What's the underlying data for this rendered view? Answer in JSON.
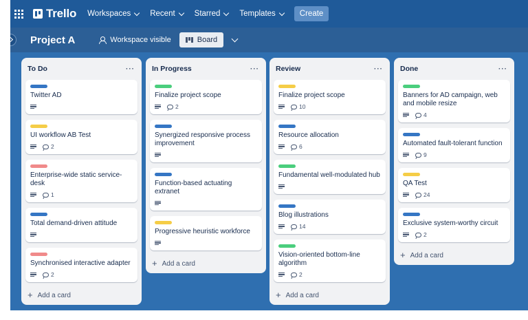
{
  "nav": {
    "logo": "Trello",
    "items": [
      {
        "label": "Workspaces"
      },
      {
        "label": "Recent"
      },
      {
        "label": "Starred"
      },
      {
        "label": "Templates"
      }
    ],
    "create_label": "Create"
  },
  "board": {
    "title": "Project A",
    "visibility": "Workspace visible",
    "view_label": "Board"
  },
  "colors": {
    "blue": "#3576c4",
    "green": "#4bce7d",
    "yellow": "#f5cd47",
    "red": "#f08a8a"
  },
  "lists": [
    {
      "title": "To Do",
      "menu": "···",
      "add_label": "Add a card",
      "cards": [
        {
          "label": "#3576c4",
          "title": "Twitter AD",
          "comments": ""
        },
        {
          "label": "#f5cd47",
          "title": "UI workflow AB Test",
          "comments": "2"
        },
        {
          "label": "#f08a8a",
          "title": "Enterprise-wide static service-desk",
          "comments": "1"
        },
        {
          "label": "#3576c4",
          "title": "Total demand-driven attitude",
          "comments": ""
        },
        {
          "label": "#f08a8a",
          "title": "Synchronised interactive adapter",
          "comments": "2"
        }
      ]
    },
    {
      "title": "In Progress",
      "menu": "···",
      "add_label": "Add a card",
      "cards": [
        {
          "label": "#4bce7d",
          "title": "Finalize project scope",
          "comments": "2"
        },
        {
          "label": "#3576c4",
          "title": "Synergized responsive process improvement",
          "comments": ""
        },
        {
          "label": "#3576c4",
          "title": "Function-based actuating extranet",
          "comments": ""
        },
        {
          "label": "#f5cd47",
          "title": "Progressive heuristic workforce",
          "comments": ""
        }
      ]
    },
    {
      "title": "Review",
      "menu": "···",
      "add_label": "Add a card",
      "cards": [
        {
          "label": "#f5cd47",
          "title": "Finalize project scope",
          "comments": "10"
        },
        {
          "label": "#3576c4",
          "title": "Resource allocation",
          "comments": "6"
        },
        {
          "label": "#4bce7d",
          "title": "Fundamental well-modulated hub",
          "comments": ""
        },
        {
          "label": "#3576c4",
          "title": "Blog illustrations",
          "comments": "14"
        },
        {
          "label": "#4bce7d",
          "title": "Vision-oriented bottom-line algorithm",
          "comments": "2"
        }
      ]
    },
    {
      "title": "Done",
      "menu": "···",
      "add_label": "Add a card",
      "cards": [
        {
          "label": "#4bce7d",
          "title": "Banners for AD campaign, web and mobile resize",
          "comments": "4"
        },
        {
          "label": "#3576c4",
          "title": "Automated fault-tolerant function",
          "comments": "9"
        },
        {
          "label": "#f5cd47",
          "title": "QA Test",
          "comments": "24"
        },
        {
          "label": "#3576c4",
          "title": "Exclusive system-worthy circuit",
          "comments": "2"
        }
      ]
    }
  ]
}
